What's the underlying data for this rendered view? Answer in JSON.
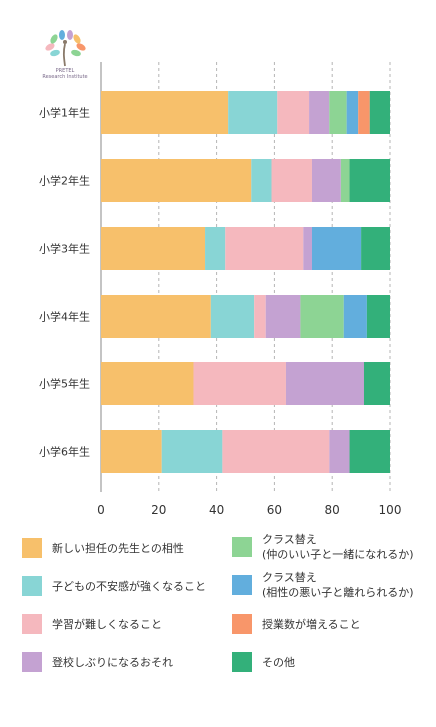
{
  "logo": {
    "name": "PRETEL",
    "subtitle": "Research Institute",
    "icon": "tree-of-colorful-leaves-logo"
  },
  "chart_data": {
    "type": "bar",
    "orientation": "horizontal",
    "stacked": true,
    "categories": [
      "小学1年生",
      "小学2年生",
      "小学3年生",
      "小学4年生",
      "小学5年生",
      "小学6年生"
    ],
    "series": [
      {
        "name": "新しい担任の先生との相性",
        "lines": [
          "新しい担任の先生との相性"
        ],
        "color": "#F7C06B",
        "values": [
          44,
          52,
          36,
          38,
          32,
          21
        ]
      },
      {
        "name": "子どもの不安感が強くなること",
        "lines": [
          "子どもの不安感が強くなること"
        ],
        "color": "#88D5D5",
        "values": [
          17,
          7,
          7,
          15,
          0,
          21
        ]
      },
      {
        "name": "学習が難しくなること",
        "lines": [
          "学習が難しくなること"
        ],
        "color": "#F5B8BE",
        "values": [
          11,
          14,
          27,
          4,
          32,
          37
        ]
      },
      {
        "name": "登校しぶりになるおそれ",
        "lines": [
          "登校しぶりになるおそれ"
        ],
        "color": "#C4A2D2",
        "values": [
          7,
          10,
          3,
          12,
          27,
          7
        ]
      },
      {
        "name": "クラス替え（仲のいい子と一緒になれるか）",
        "lines": [
          "クラス替え",
          "(仲のいい子と一緒になれるか)"
        ],
        "color": "#8DD494",
        "values": [
          6,
          3,
          0,
          15,
          0,
          0
        ]
      },
      {
        "name": "クラス替え（相性の悪い子と離れられるか）",
        "lines": [
          "クラス替え",
          "(相性の悪い子と離れられるか)"
        ],
        "color": "#62AEDD",
        "values": [
          4,
          0,
          17,
          8,
          0,
          0
        ]
      },
      {
        "name": "授業数が増えること",
        "lines": [
          "授業数が増えること"
        ],
        "color": "#F8966A",
        "values": [
          4,
          0,
          0,
          0,
          0,
          0
        ]
      },
      {
        "name": "その他",
        "lines": [
          "その他"
        ],
        "color": "#33B07A",
        "values": [
          7,
          14,
          10,
          8,
          9,
          14
        ]
      }
    ],
    "xlim": [
      0,
      100
    ],
    "xticks": [
      0,
      20,
      40,
      60,
      80,
      100
    ],
    "grid": "vertical dashed",
    "legend_position": "bottom"
  }
}
